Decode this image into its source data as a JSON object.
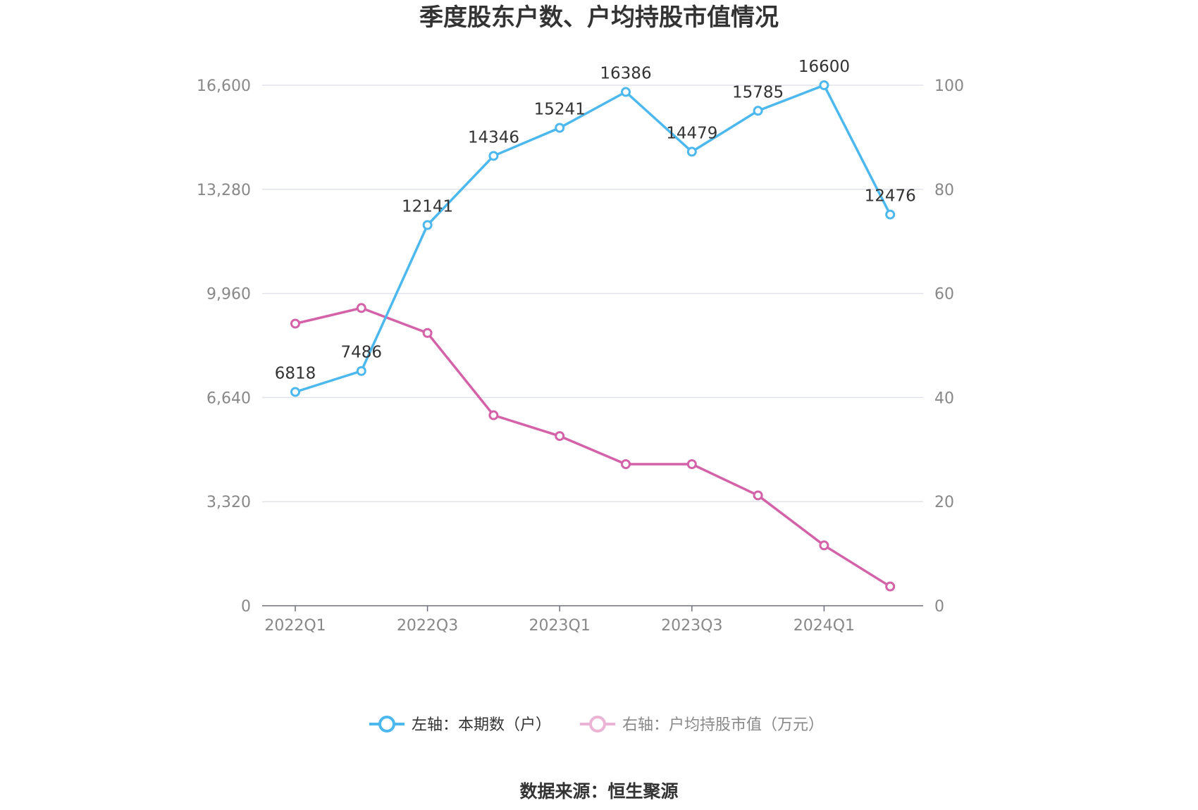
{
  "chart_data": {
    "type": "line",
    "title": "季度股东户数、户均持股市值情况",
    "categories": [
      "2022Q1",
      "2022Q2",
      "2022Q3",
      "2022Q4",
      "2023Q1",
      "2023Q2",
      "2023Q3",
      "2023Q4",
      "2024Q1",
      "2024Q2"
    ],
    "x_tick_labels": [
      "2022Q1",
      "",
      "2022Q3",
      "",
      "2023Q1",
      "",
      "2023Q3",
      "",
      "2024Q1",
      ""
    ],
    "y_left": {
      "range": [
        0,
        16600
      ],
      "ticks": [
        0,
        3320,
        6640,
        9960,
        13280,
        16600
      ],
      "tick_labels": [
        "0",
        "3,320",
        "6,640",
        "9,960",
        "13,280",
        "16,600"
      ]
    },
    "y_right": {
      "range": [
        0,
        100
      ],
      "ticks": [
        0,
        20,
        40,
        60,
        80,
        100
      ],
      "tick_labels": [
        "0",
        "20",
        "40",
        "60",
        "80",
        "100"
      ]
    },
    "grid": true,
    "legend_position": "bottom",
    "series": [
      {
        "name": "左轴：本期数（户）",
        "axis": "left",
        "color": "#4db8ee",
        "show_labels": true,
        "values": [
          6818,
          7486,
          12141,
          14346,
          15241,
          16386,
          14479,
          15785,
          16600,
          12476
        ]
      },
      {
        "name": "右轴：户均持股市值（万元）",
        "axis": "right",
        "color": "#d362a8",
        "legend_color": "#ebb4d6",
        "show_labels": false,
        "values": [
          54.2,
          57.2,
          52.4,
          36.6,
          32.6,
          27.2,
          27.2,
          21.2,
          11.6,
          3.7
        ]
      }
    ],
    "source": "数据来源：恒生聚源"
  }
}
